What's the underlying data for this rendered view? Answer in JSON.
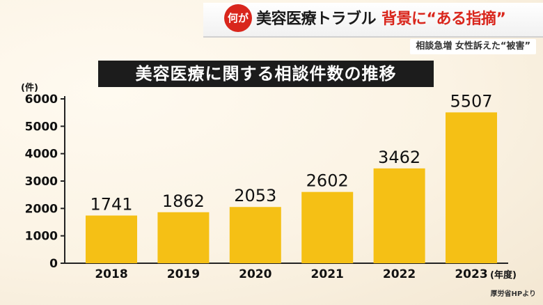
{
  "banner": {
    "badge": "何が",
    "headline_dark": "美容医療トラブル",
    "headline_red": "背景に“ある指摘”",
    "subheadline": "相談急増 女性訴えた“被害”"
  },
  "source": "厚労省HPより",
  "colors": {
    "bar": "#f5c015",
    "title_bg": "#1c1c1c",
    "accent_red": "#d9261c"
  },
  "chart_data": {
    "type": "bar",
    "title": "美容医療に関する相談件数の推移",
    "xlabel": "(年度)",
    "ylabel": "(件)",
    "categories": [
      "2018",
      "2019",
      "2020",
      "2021",
      "2022",
      "2023"
    ],
    "values": [
      1741,
      1862,
      2053,
      2602,
      3462,
      5507
    ],
    "data_labels": [
      "1741",
      "1862",
      "2053",
      "2602",
      "3462",
      "5507"
    ],
    "yticks": [
      0,
      1000,
      2000,
      3000,
      4000,
      5000,
      6000
    ],
    "ylim": [
      0,
      6000
    ],
    "grid": false,
    "legend": "none"
  }
}
